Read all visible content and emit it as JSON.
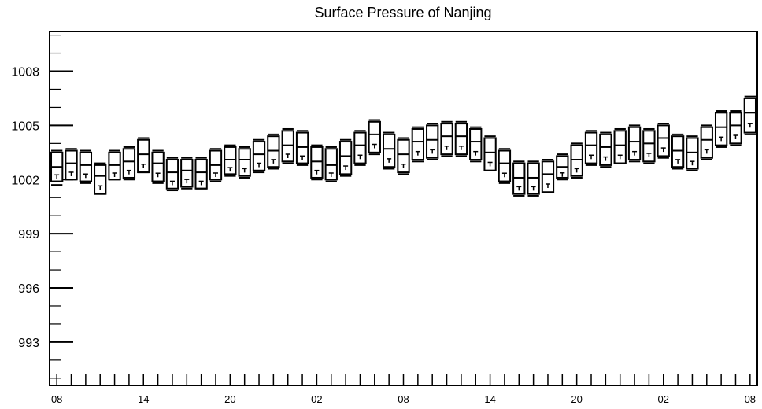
{
  "chart_data": {
    "type": "box",
    "title": "Surface Pressure of Nanjing",
    "xlabel": "",
    "ylabel": "",
    "ylim": [
      990.6,
      1010.2
    ],
    "yticks": [
      993,
      996,
      999,
      1002,
      1005,
      1008
    ],
    "x_tick_labels": [
      "08",
      "14",
      "20",
      "02",
      "08",
      "14",
      "20",
      "02",
      "08"
    ],
    "grid": false,
    "boxes": [
      {
        "x": 0,
        "low": 1001.7,
        "q1": 1001.9,
        "median": 1002.7,
        "q3": 1003.5,
        "high": 1003.6
      },
      {
        "x": 1,
        "low": 1002.0,
        "q1": 1002.0,
        "median": 1002.9,
        "q3": 1003.6,
        "high": 1003.7
      },
      {
        "x": 2,
        "low": 1001.8,
        "q1": 1001.9,
        "median": 1002.8,
        "q3": 1003.5,
        "high": 1003.6
      },
      {
        "x": 3,
        "low": 1001.2,
        "q1": 1001.2,
        "median": 1002.2,
        "q3": 1002.8,
        "high": 1002.9
      },
      {
        "x": 4,
        "low": 1002.0,
        "q1": 1002.0,
        "median": 1002.8,
        "q3": 1003.5,
        "high": 1003.6
      },
      {
        "x": 5,
        "low": 1002.0,
        "q1": 1002.1,
        "median": 1003.0,
        "q3": 1003.7,
        "high": 1003.8
      },
      {
        "x": 6,
        "low": 1002.4,
        "q1": 1002.4,
        "median": 1003.4,
        "q3": 1004.2,
        "high": 1004.3
      },
      {
        "x": 7,
        "low": 1001.8,
        "q1": 1001.9,
        "median": 1002.9,
        "q3": 1003.5,
        "high": 1003.6
      },
      {
        "x": 8,
        "low": 1001.4,
        "q1": 1001.5,
        "median": 1002.4,
        "q3": 1003.1,
        "high": 1003.2
      },
      {
        "x": 9,
        "low": 1001.5,
        "q1": 1001.6,
        "median": 1002.5,
        "q3": 1003.1,
        "high": 1003.2
      },
      {
        "x": 10,
        "low": 1001.5,
        "q1": 1001.5,
        "median": 1002.4,
        "q3": 1003.1,
        "high": 1003.2
      },
      {
        "x": 11,
        "low": 1001.9,
        "q1": 1002.0,
        "median": 1002.8,
        "q3": 1003.6,
        "high": 1003.7
      },
      {
        "x": 12,
        "low": 1002.2,
        "q1": 1002.3,
        "median": 1003.1,
        "q3": 1003.8,
        "high": 1003.9
      },
      {
        "x": 13,
        "low": 1002.1,
        "q1": 1002.2,
        "median": 1003.1,
        "q3": 1003.7,
        "high": 1003.8
      },
      {
        "x": 14,
        "low": 1002.4,
        "q1": 1002.5,
        "median": 1003.4,
        "q3": 1004.1,
        "high": 1004.2
      },
      {
        "x": 15,
        "low": 1002.6,
        "q1": 1002.7,
        "median": 1003.6,
        "q3": 1004.4,
        "high": 1004.5
      },
      {
        "x": 16,
        "low": 1002.9,
        "q1": 1003.0,
        "median": 1003.9,
        "q3": 1004.7,
        "high": 1004.8
      },
      {
        "x": 17,
        "low": 1002.8,
        "q1": 1002.9,
        "median": 1003.8,
        "q3": 1004.6,
        "high": 1004.7
      },
      {
        "x": 18,
        "low": 1002.0,
        "q1": 1002.1,
        "median": 1003.0,
        "q3": 1003.8,
        "high": 1003.9
      },
      {
        "x": 19,
        "low": 1001.9,
        "q1": 1002.0,
        "median": 1002.8,
        "q3": 1003.7,
        "high": 1003.8
      },
      {
        "x": 20,
        "low": 1002.2,
        "q1": 1002.3,
        "median": 1003.3,
        "q3": 1004.1,
        "high": 1004.2
      },
      {
        "x": 21,
        "low": 1002.8,
        "q1": 1002.9,
        "median": 1003.9,
        "q3": 1004.6,
        "high": 1004.7
      },
      {
        "x": 22,
        "low": 1003.4,
        "q1": 1003.5,
        "median": 1004.5,
        "q3": 1005.2,
        "high": 1005.3
      },
      {
        "x": 23,
        "low": 1002.6,
        "q1": 1002.7,
        "median": 1003.7,
        "q3": 1004.5,
        "high": 1004.6
      },
      {
        "x": 24,
        "low": 1002.3,
        "q1": 1002.4,
        "median": 1003.4,
        "q3": 1004.2,
        "high": 1004.3
      },
      {
        "x": 25,
        "low": 1003.0,
        "q1": 1003.1,
        "median": 1004.1,
        "q3": 1004.8,
        "high": 1004.9
      },
      {
        "x": 26,
        "low": 1003.1,
        "q1": 1003.2,
        "median": 1004.2,
        "q3": 1005.0,
        "high": 1005.1
      },
      {
        "x": 27,
        "low": 1003.3,
        "q1": 1003.4,
        "median": 1004.4,
        "q3": 1005.1,
        "high": 1005.2
      },
      {
        "x": 28,
        "low": 1003.3,
        "q1": 1003.4,
        "median": 1004.4,
        "q3": 1005.1,
        "high": 1005.2
      },
      {
        "x": 29,
        "low": 1003.0,
        "q1": 1003.1,
        "median": 1004.1,
        "q3": 1004.8,
        "high": 1004.9
      },
      {
        "x": 30,
        "low": 1002.5,
        "q1": 1002.5,
        "median": 1003.5,
        "q3": 1004.3,
        "high": 1004.4
      },
      {
        "x": 31,
        "low": 1001.8,
        "q1": 1001.9,
        "median": 1002.9,
        "q3": 1003.6,
        "high": 1003.7
      },
      {
        "x": 32,
        "low": 1001.1,
        "q1": 1001.2,
        "median": 1002.1,
        "q3": 1002.9,
        "high": 1003.0
      },
      {
        "x": 33,
        "low": 1001.1,
        "q1": 1001.2,
        "median": 1002.1,
        "q3": 1002.9,
        "high": 1003.0
      },
      {
        "x": 34,
        "low": 1001.3,
        "q1": 1001.3,
        "median": 1002.3,
        "q3": 1003.0,
        "high": 1003.1
      },
      {
        "x": 35,
        "low": 1002.0,
        "q1": 1002.1,
        "median": 1002.7,
        "q3": 1003.3,
        "high": 1003.4
      },
      {
        "x": 36,
        "low": 1002.1,
        "q1": 1002.2,
        "median": 1003.1,
        "q3": 1003.9,
        "high": 1004.0
      },
      {
        "x": 37,
        "low": 1002.8,
        "q1": 1002.9,
        "median": 1003.9,
        "q3": 1004.6,
        "high": 1004.7
      },
      {
        "x": 38,
        "low": 1002.7,
        "q1": 1002.8,
        "median": 1003.8,
        "q3": 1004.5,
        "high": 1004.6
      },
      {
        "x": 39,
        "low": 1002.9,
        "q1": 1002.9,
        "median": 1003.9,
        "q3": 1004.7,
        "high": 1004.8
      },
      {
        "x": 40,
        "low": 1003.0,
        "q1": 1003.1,
        "median": 1004.1,
        "q3": 1004.9,
        "high": 1005.0
      },
      {
        "x": 41,
        "low": 1002.9,
        "q1": 1003.0,
        "median": 1004.0,
        "q3": 1004.7,
        "high": 1004.8
      },
      {
        "x": 42,
        "low": 1003.2,
        "q1": 1003.3,
        "median": 1004.3,
        "q3": 1005.0,
        "high": 1005.1
      },
      {
        "x": 43,
        "low": 1002.6,
        "q1": 1002.7,
        "median": 1003.6,
        "q3": 1004.4,
        "high": 1004.5
      },
      {
        "x": 44,
        "low": 1002.5,
        "q1": 1002.6,
        "median": 1003.5,
        "q3": 1004.3,
        "high": 1004.4
      },
      {
        "x": 45,
        "low": 1003.1,
        "q1": 1003.2,
        "median": 1004.2,
        "q3": 1004.9,
        "high": 1005.0
      },
      {
        "x": 46,
        "low": 1003.8,
        "q1": 1003.9,
        "median": 1004.9,
        "q3": 1005.7,
        "high": 1005.8
      },
      {
        "x": 47,
        "low": 1003.9,
        "q1": 1004.0,
        "median": 1005.0,
        "q3": 1005.7,
        "high": 1005.8
      },
      {
        "x": 48,
        "low": 1004.5,
        "q1": 1004.6,
        "median": 1005.7,
        "q3": 1006.5,
        "high": 1006.6
      }
    ]
  }
}
